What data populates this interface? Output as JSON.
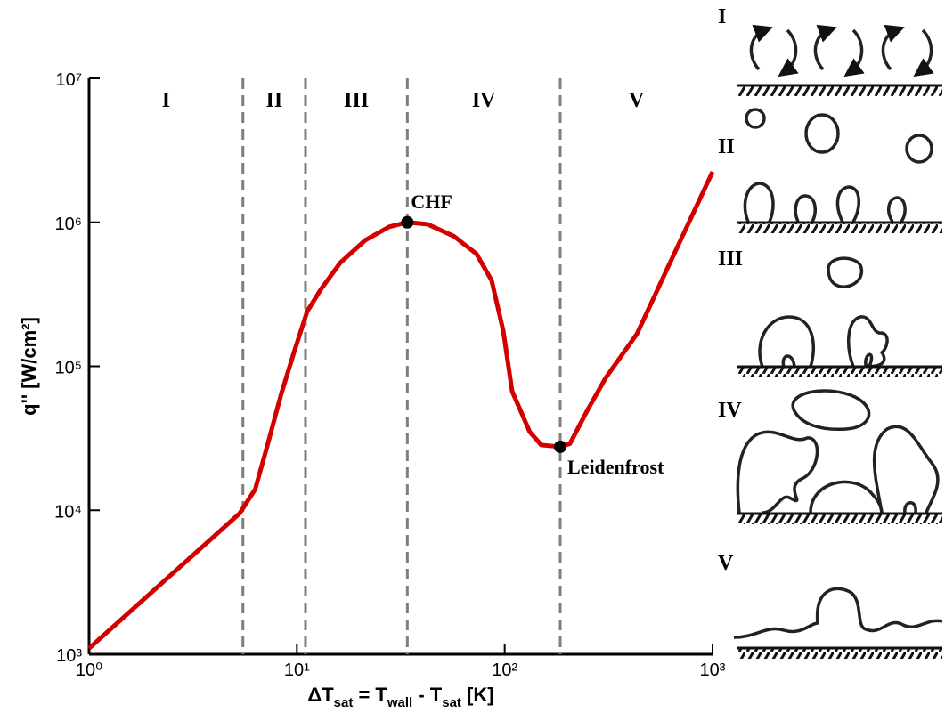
{
  "chart_data": {
    "type": "line",
    "log_x": true,
    "log_y": true,
    "color": "#d40000",
    "x_label": [
      "ΔT",
      "sat",
      " = T",
      "wall",
      " - T",
      "sat",
      " [K]"
    ],
    "y_label": "q'' [W/cm²]",
    "xlim": [
      1,
      1000
    ],
    "xticks": [
      {
        "value": 1,
        "label": "10⁰"
      },
      {
        "value": 10,
        "label": "10¹"
      },
      {
        "value": 100,
        "label": "10²"
      },
      {
        "value": 1000,
        "label": "10³"
      }
    ],
    "ylim": [
      1000,
      10000000
    ],
    "yticks": [
      {
        "value": 1000,
        "label": "10³"
      },
      {
        "value": 10000,
        "label": "10⁴"
      },
      {
        "value": 100000,
        "label": "10⁵"
      },
      {
        "value": 1000000,
        "label": "10⁶"
      },
      {
        "value": 10000000,
        "label": "10⁷"
      }
    ],
    "x": [
      1.0,
      5.3,
      6.3,
      7.2,
      8.4,
      9.7,
      11.2,
      13,
      16.2,
      21.3,
      27.8,
      34,
      42.5,
      57,
      73,
      86.5,
      98.5,
      108.6,
      132,
      150,
      185,
      206,
      251,
      306,
      433,
      611,
      1000
    ],
    "values": [
      1100,
      9500,
      14000,
      28000,
      64000,
      126000,
      240000,
      340000,
      525000,
      750000,
      930000,
      1000000,
      970000,
      800000,
      605000,
      395000,
      175000,
      67000,
      35000,
      28400,
      27600,
      29000,
      50000,
      83000,
      168000,
      490000,
      2240000
    ],
    "dividers": [
      5.5,
      11,
      34,
      185
    ],
    "regions": [
      "I",
      "II",
      "III",
      "IV",
      "V"
    ],
    "points": [
      {
        "name": "CHF",
        "x": 34,
        "y": 1000000
      },
      {
        "name": "Leidenfrost",
        "x": 185,
        "y": 27600
      }
    ]
  }
}
